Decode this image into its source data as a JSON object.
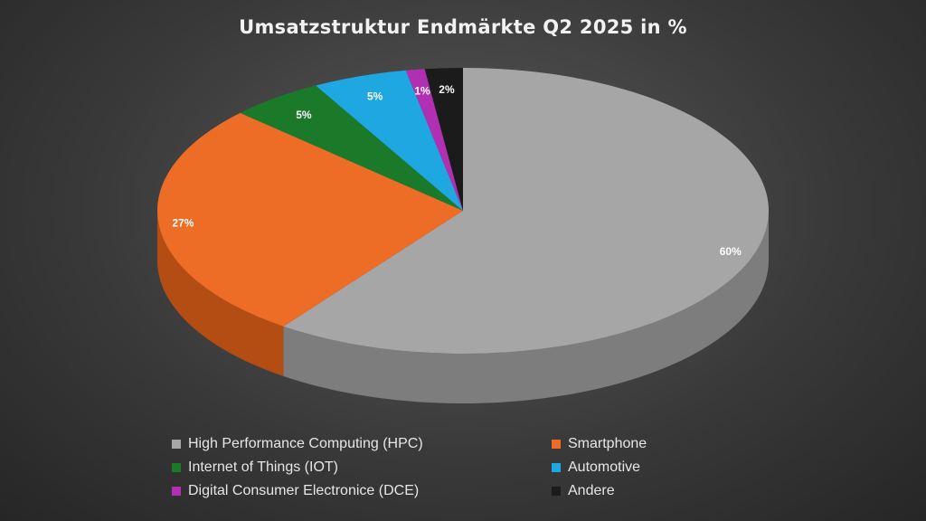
{
  "title": "Umsatzstruktur Endmärkte Q2 2025 in %",
  "chart_data": {
    "type": "pie",
    "title": "Umsatzstruktur Endmärkte Q2 2025 in %",
    "legend_position": "bottom",
    "slices": [
      {
        "label": "High Performance Computing (HPC)",
        "value": 60,
        "display": "60%",
        "color": "#a6a6a6",
        "side": "#7d7d7d"
      },
      {
        "label": "Smartphone",
        "value": 27,
        "display": "27%",
        "color": "#ed6d27",
        "side": "#b34d14"
      },
      {
        "label": "Internet of Things (IOT)",
        "value": 5,
        "display": "5%",
        "color": "#1a7a2a",
        "side": "#0f5018"
      },
      {
        "label": "Automotive",
        "value": 5,
        "display": "5%",
        "color": "#1ea7e1",
        "side": "#137aa8"
      },
      {
        "label": "Digital Consumer Electronice (DCE)",
        "value": 1,
        "display": "1%",
        "color": "#b12fb3",
        "side": "#7d1f80"
      },
      {
        "label": "Andere",
        "value": 2,
        "display": "2%",
        "color": "#1b1b1b",
        "side": "#0e0e0e"
      }
    ]
  }
}
